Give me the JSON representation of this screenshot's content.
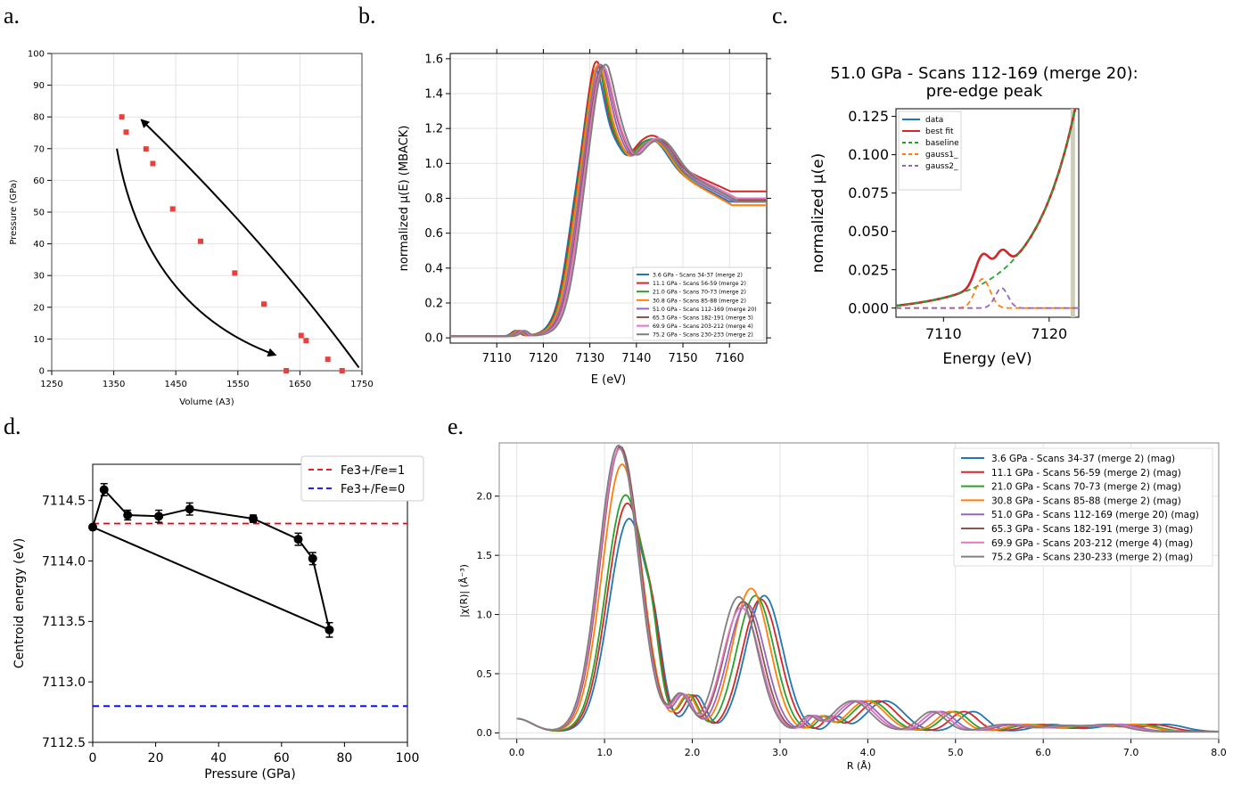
{
  "panel_labels": [
    "a.",
    "b.",
    "c.",
    "d.",
    "e."
  ],
  "chart_data": [
    {
      "id": "a",
      "type": "scatter",
      "xlabel": "Volume (A3)",
      "ylabel": "Pressure (GPa)",
      "xlim": [
        1250,
        1750
      ],
      "ylim": [
        0,
        100
      ],
      "xticks": [
        "1250",
        "1350",
        "1450",
        "1550",
        "1650",
        "1750"
      ],
      "yticks": [
        "0",
        "10",
        "20",
        "30",
        "40",
        "50",
        "60",
        "70",
        "80",
        "90",
        "100"
      ],
      "grid": true,
      "series": [
        {
          "color": "#e8413c",
          "points": [
            [
              1363,
              80
            ],
            [
              1370,
              75.2
            ],
            [
              1402,
              69.9
            ],
            [
              1413,
              65.3
            ],
            [
              1445,
              51.0
            ],
            [
              1490,
              40.8
            ],
            [
              1545,
              30.8
            ],
            [
              1592,
              21.0
            ],
            [
              1652,
              11.1
            ],
            [
              1660,
              9.5
            ],
            [
              1695,
              3.6
            ],
            [
              1718,
              0
            ],
            [
              1628,
              0
            ]
          ]
        }
      ],
      "annotations": [
        {
          "type": "arrow",
          "from": [
            1355,
            70
          ],
          "to": [
            1610,
            5
          ]
        },
        {
          "type": "arrow",
          "from": [
            1745,
            1
          ],
          "to": [
            1395,
            79
          ]
        }
      ]
    },
    {
      "id": "b",
      "type": "line",
      "xlabel": "E (eV)",
      "ylabel": "normalized μ(E) (MBACK)",
      "xlim": [
        7100,
        7168
      ],
      "ylim": [
        -0.03,
        1.63
      ],
      "xticks": [
        "7110",
        "7120",
        "7130",
        "7140",
        "7150",
        "7160"
      ],
      "yticks": [
        "0.0",
        "0.2",
        "0.4",
        "0.6",
        "0.8",
        "1.0",
        "1.2",
        "1.4",
        "1.6"
      ],
      "legend_position": "lower-right",
      "series": [
        {
          "name": "3.6 GPa - Scans 34-37 (merge 2)",
          "color": "#1f77b4",
          "shift": 0.0,
          "peak": 1.55,
          "w": 1.0,
          "tail": 0.78
        },
        {
          "name": "11.1 GPa - Scans 56-59 (merge 2)",
          "color": "#d62728",
          "shift": 0.2,
          "peak": 1.6,
          "w": 1.0,
          "tail": 0.84
        },
        {
          "name": "21.0 GPa - Scans 70-73 (merge 2)",
          "color": "#2ca02c",
          "shift": 0.4,
          "peak": 1.57,
          "w": 1.05,
          "tail": 0.79
        },
        {
          "name": "30.8 GPa - Scans 85-88 (merge 2)",
          "color": "#ff7f0e",
          "shift": 0.6,
          "peak": 1.58,
          "w": 1.1,
          "tail": 0.76
        },
        {
          "name": "51.0 GPa - Scans 112-169 (merge 20)",
          "color": "#9467bd",
          "shift": 1.0,
          "peak": 1.58,
          "w": 1.15,
          "tail": 0.78
        },
        {
          "name": "65.3 GPa - Scans 182-191 (merge 3)",
          "color": "#8c564b",
          "shift": 1.4,
          "peak": 1.57,
          "w": 1.2,
          "tail": 0.79
        },
        {
          "name": "69.9 GPa - Scans 203-212 (merge 4)",
          "color": "#e377c2",
          "shift": 1.6,
          "peak": 1.56,
          "w": 1.2,
          "tail": 0.8
        },
        {
          "name": "75.2 GPa - Scans 230-233 (merge 2)",
          "color": "#7f7f7f",
          "shift": 2.0,
          "peak": 1.58,
          "w": 1.25,
          "tail": 0.78
        }
      ]
    },
    {
      "id": "c",
      "type": "line",
      "title": "51.0 GPa - Scans 112-169 (merge 20):",
      "subtitle": "pre-edge peak",
      "xlabel": "Energy (eV)",
      "ylabel": "normalized μ(e)",
      "xlim": [
        7105.5,
        7122.8
      ],
      "ylim": [
        -0.006,
        0.13
      ],
      "xticks": [
        "7110",
        "7120"
      ],
      "yticks": [
        "0.000",
        "0.025",
        "0.050",
        "0.075",
        "0.100",
        "0.125"
      ],
      "legend_position": "upper-left",
      "fit_window_x": 7122.2,
      "series": [
        {
          "name": "data",
          "color": "#1f77b4",
          "style": "solid"
        },
        {
          "name": "best fit",
          "color": "#d62728",
          "style": "solid"
        },
        {
          "name": "baseline",
          "color": "#2ca02c",
          "style": "dashed"
        },
        {
          "name": "gauss1_",
          "color": "#ff7f0e",
          "style": "dashed",
          "center": 7113.7,
          "amp": 0.019,
          "sigma": 0.7
        },
        {
          "name": "gauss2_",
          "color": "#9467bd",
          "style": "dashed",
          "center": 7115.5,
          "amp": 0.013,
          "sigma": 0.6
        }
      ]
    },
    {
      "id": "d",
      "type": "line",
      "xlabel": "Pressure (GPa)",
      "ylabel": "Centroid energy (eV)",
      "xlim": [
        0,
        100
      ],
      "ylim": [
        7112.5,
        7114.8
      ],
      "xticks": [
        "0",
        "20",
        "40",
        "60",
        "80",
        "100"
      ],
      "yticks": [
        "7112.5",
        "7113.0",
        "7113.5",
        "7114.0",
        "7114.5"
      ],
      "legend_position": "upper-right",
      "hlines": [
        {
          "name": "Fe3+/Fe=1",
          "y": 7114.31,
          "color": "#e8000b"
        },
        {
          "name": "Fe3+/Fe=0",
          "y": 7112.8,
          "color": "#0000ff"
        }
      ],
      "points": [
        {
          "x": 0,
          "y": 7114.28,
          "err": 0.0
        },
        {
          "x": 3.6,
          "y": 7114.59,
          "err": 0.05
        },
        {
          "x": 11.1,
          "y": 7114.38,
          "err": 0.04
        },
        {
          "x": 21.0,
          "y": 7114.37,
          "err": 0.05
        },
        {
          "x": 30.8,
          "y": 7114.43,
          "err": 0.05
        },
        {
          "x": 51.0,
          "y": 7114.35,
          "err": 0.03
        },
        {
          "x": 65.3,
          "y": 7114.18,
          "err": 0.05
        },
        {
          "x": 69.9,
          "y": 7114.02,
          "err": 0.05
        },
        {
          "x": 75.2,
          "y": 7113.43,
          "err": 0.06
        }
      ]
    },
    {
      "id": "e",
      "type": "line",
      "xlabel": "R (Å)",
      "ylabel": "|χ(R)| (Å⁻³)",
      "xlim": [
        -0.2,
        8.0
      ],
      "ylim": [
        -0.05,
        2.45
      ],
      "xticks": [
        "0.0",
        "1.0",
        "2.0",
        "3.0",
        "4.0",
        "5.0",
        "6.0",
        "7.0",
        "8.0"
      ],
      "yticks": [
        "0.0",
        "0.5",
        "1.0",
        "1.5",
        "2.0"
      ],
      "legend_position": "upper-right",
      "series": [
        {
          "name": "3.6 GPa - Scans 34-37 (merge 2) (mag)",
          "color": "#1f77b4",
          "p1": 1.8,
          "r1": 1.28,
          "r2": 2.82,
          "p2": 1.15,
          "s": 1.0
        },
        {
          "name": "11.1 GPa - Scans 56-59 (merge 2) (mag)",
          "color": "#d62728",
          "p1": 1.93,
          "r1": 1.26,
          "r2": 2.78,
          "p2": 1.12,
          "s": 0.98
        },
        {
          "name": "21.0 GPa - Scans 70-73 (merge 2) (mag)",
          "color": "#2ca02c",
          "p1": 2.0,
          "r1": 1.24,
          "r2": 2.72,
          "p2": 1.15,
          "s": 0.96
        },
        {
          "name": "30.8 GPa - Scans 85-88 (merge 2) (mag)",
          "color": "#ff7f0e",
          "p1": 2.26,
          "r1": 1.2,
          "r2": 2.67,
          "p2": 1.21,
          "s": 0.95
        },
        {
          "name": "51.0 GPa - Scans 112-169 (merge 20) (mag)",
          "color": "#9467bd",
          "p1": 2.4,
          "r1": 1.18,
          "r2": 2.62,
          "p2": 1.08,
          "s": 0.93
        },
        {
          "name": "65.3 GPa - Scans 182-191 (merge 3) (mag)",
          "color": "#8c564b",
          "p1": 2.41,
          "r1": 1.18,
          "r2": 2.58,
          "p2": 1.1,
          "s": 0.92
        },
        {
          "name": "69.9 GPa - Scans 203-212 (merge 4) (mag)",
          "color": "#e377c2",
          "p1": 2.39,
          "r1": 1.17,
          "r2": 2.56,
          "p2": 1.05,
          "s": 0.92
        },
        {
          "name": "75.2 GPa - Scans 230-233 (merge 2) (mag)",
          "color": "#7f7f7f",
          "p1": 2.42,
          "r1": 1.16,
          "r2": 2.53,
          "p2": 1.14,
          "s": 0.91
        }
      ]
    }
  ]
}
